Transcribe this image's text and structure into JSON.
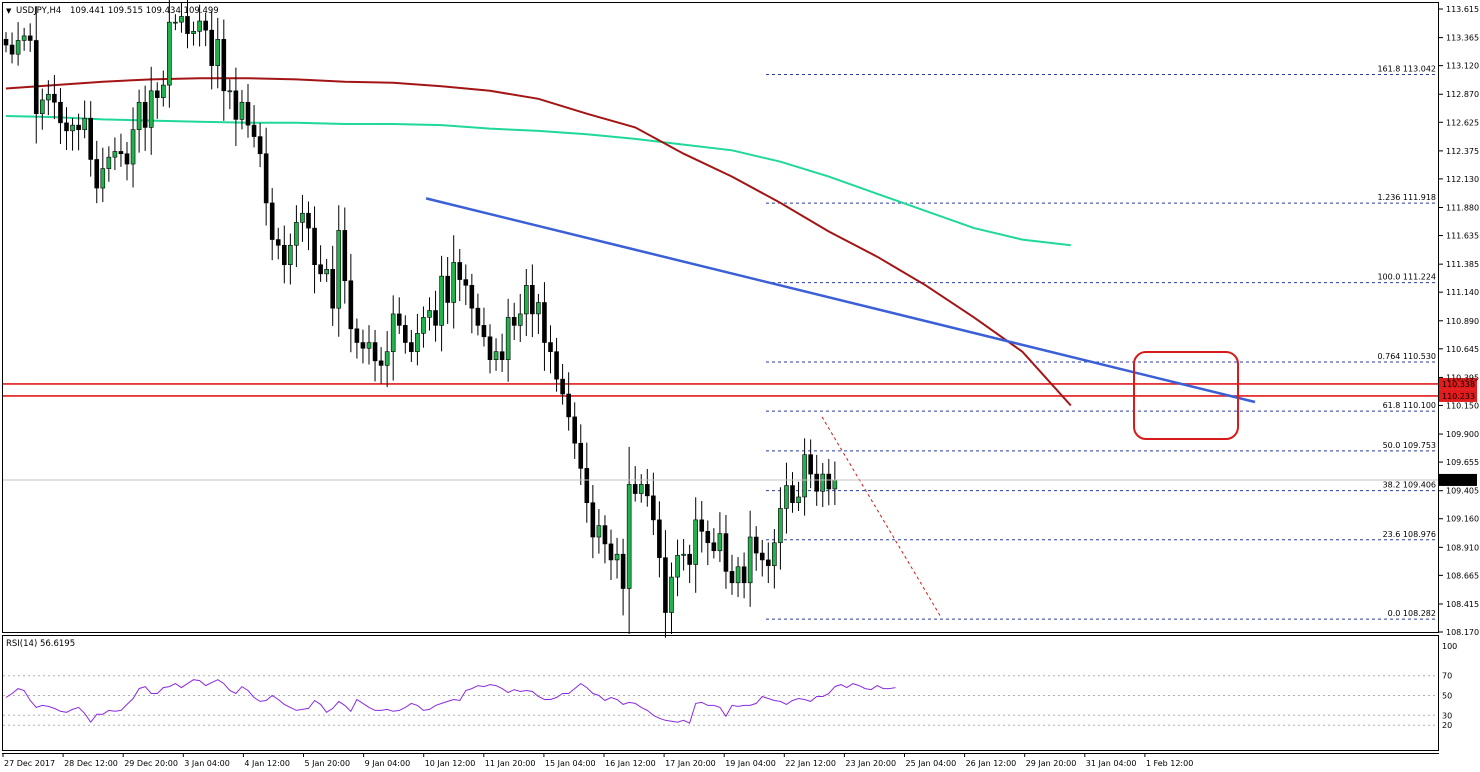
{
  "header": {
    "symbol_label": "USDJPY,H4",
    "ohlc_label": "109.441 109.515 109.434 109.499"
  },
  "rsi_panel": {
    "label": "RSI(14) 56.6195",
    "levels": [
      100,
      70,
      50,
      30,
      20
    ],
    "level_labels": [
      "100",
      "70",
      "50",
      "30",
      "20"
    ],
    "values": [
      48,
      52,
      57,
      55,
      45,
      38,
      40,
      39,
      37,
      34,
      33,
      36,
      38,
      32,
      23,
      31,
      31,
      35,
      34,
      35,
      41,
      47,
      57,
      59,
      52,
      52,
      58,
      59,
      62,
      58,
      62,
      66,
      65,
      60,
      63,
      66,
      62,
      55,
      52,
      59,
      55,
      48,
      44,
      45,
      50,
      46,
      41,
      38,
      35,
      36,
      37,
      45,
      41,
      33,
      37,
      44,
      40,
      34,
      46,
      42,
      38,
      35,
      35,
      36,
      34,
      35,
      38,
      42,
      40,
      35,
      36,
      40,
      42,
      44,
      46,
      45,
      55,
      57,
      60,
      59,
      61,
      60,
      57,
      53,
      56,
      54,
      55,
      54,
      49,
      46,
      46,
      48,
      52,
      52,
      57,
      62,
      58,
      52,
      50,
      45,
      48,
      46,
      41,
      43,
      42,
      38,
      35,
      30,
      27,
      25,
      24,
      23,
      25,
      22,
      42,
      43,
      40,
      40,
      38,
      29,
      40,
      39,
      40,
      40,
      42,
      49,
      47,
      45,
      44,
      41,
      45,
      47,
      46,
      44,
      49,
      49,
      52,
      59,
      61,
      58,
      62,
      60,
      57,
      56,
      60,
      57,
      57,
      58
    ]
  },
  "price_axis": {
    "ticks": [
      "113.615",
      "113.365",
      "113.120",
      "112.870",
      "112.625",
      "112.375",
      "112.130",
      "111.880",
      "111.635",
      "111.385",
      "111.140",
      "110.890",
      "110.645",
      "110.395",
      "110.150",
      "109.900",
      "109.655",
      "109.405",
      "109.160",
      "108.910",
      "108.665",
      "108.415",
      "108.170"
    ],
    "current_price_label": "109.499",
    "resistance_labels": [
      "110.338",
      "110.233"
    ]
  },
  "time_axis": {
    "labels": [
      "27 Dec 2017",
      "28 Dec 12:00",
      "29 Dec 20:00",
      "3 Jan 04:00",
      "4 Jan 12:00",
      "5 Jan 20:00",
      "9 Jan 04:00",
      "10 Jan 12:00",
      "11 Jan 20:00",
      "15 Jan 04:00",
      "16 Jan 12:00",
      "17 Jan 20:00",
      "19 Jan 04:00",
      "22 Jan 12:00",
      "23 Jan 20:00",
      "25 Jan 04:00",
      "26 Jan 12:00",
      "29 Jan 20:00",
      "31 Jan 04:00",
      "1 Feb 12:00"
    ]
  },
  "fibonacci": {
    "levels": [
      {
        "ratio": "161.8",
        "price": "113.042"
      },
      {
        "ratio": "1.236",
        "price": "111.918"
      },
      {
        "ratio": "100.0",
        "price": "111.224"
      },
      {
        "ratio": "0.764",
        "price": "110.530"
      },
      {
        "ratio": "61.8",
        "price": "110.100"
      },
      {
        "ratio": "50.0",
        "price": "109.753"
      },
      {
        "ratio": "38.2",
        "price": "109.406"
      },
      {
        "ratio": "23.6",
        "price": "108.976"
      },
      {
        "ratio": "0.0",
        "price": "108.282"
      }
    ]
  },
  "colors": {
    "bull_candle": "#22b14c",
    "bear_candle": "#000000",
    "sma_fast": "#a31515",
    "sma_slow": "#1fd89a",
    "trendline": "#3a5fd6",
    "resistance": "#e21c1c",
    "fib_line": "#2a3aa8",
    "rsi_line": "#8a2be2",
    "highlight_box": "#d71a1a"
  },
  "chart_data": {
    "type": "candlestick",
    "symbol": "USDJPY",
    "timeframe": "H4",
    "ylim": [
      108.17,
      113.615
    ],
    "close": [
      113.3,
      113.22,
      113.34,
      113.38,
      113.34,
      112.7,
      112.82,
      112.87,
      112.8,
      112.62,
      112.55,
      112.6,
      112.56,
      112.66,
      112.3,
      112.05,
      112.22,
      112.32,
      112.37,
      112.35,
      112.26,
      112.56,
      112.8,
      112.58,
      112.9,
      112.84,
      112.95,
      113.5,
      113.5,
      113.55,
      113.4,
      113.42,
      113.51,
      113.43,
      113.12,
      113.35,
      112.9,
      112.9,
      112.65,
      112.8,
      112.6,
      112.5,
      112.35,
      111.92,
      111.6,
      111.55,
      111.38,
      111.55,
      111.75,
      111.83,
      111.7,
      111.38,
      111.3,
      111.34,
      111.0,
      111.68,
      111.24,
      110.82,
      110.7,
      110.65,
      110.7,
      110.54,
      110.5,
      110.62,
      110.95,
      110.85,
      110.7,
      110.62,
      110.78,
      110.92,
      110.98,
      110.85,
      111.28,
      111.05,
      111.4,
      111.25,
      111.2,
      111.0,
      110.85,
      110.75,
      110.55,
      110.62,
      110.55,
      110.92,
      110.85,
      110.95,
      111.2,
      110.95,
      111.05,
      110.7,
      110.62,
      110.38,
      110.25,
      110.05,
      109.82,
      109.6,
      109.3,
      109.0,
      109.1,
      108.94,
      108.8,
      108.85,
      108.55,
      109.46,
      109.38,
      109.46,
      109.36,
      109.15,
      108.82,
      108.34,
      108.65,
      108.84,
      108.85,
      108.76,
      109.15,
      109.05,
      108.95,
      108.88,
      109.03,
      108.7,
      108.6,
      108.74,
      108.6,
      109.0,
      108.86,
      108.8,
      108.75,
      108.95,
      109.25,
      109.45,
      109.3,
      109.35,
      109.72,
      109.55,
      109.4,
      109.55,
      109.42,
      109.5
    ],
    "sma_fast": [
      112.92,
      112.95,
      112.98,
      113.0,
      113.01,
      113.01,
      113.0,
      112.98,
      112.97,
      112.94,
      112.9,
      112.83,
      112.7,
      112.58,
      112.35,
      112.15,
      111.92,
      111.67,
      111.45,
      111.2,
      110.92,
      110.62,
      110.15
    ],
    "sma_slow": [
      112.68,
      112.67,
      112.65,
      112.64,
      112.63,
      112.62,
      112.62,
      112.61,
      112.61,
      112.6,
      112.57,
      112.55,
      112.52,
      112.48,
      112.43,
      112.38,
      112.28,
      112.15,
      112.0,
      111.85,
      111.7,
      111.6,
      111.55
    ],
    "trendline": {
      "start_bar": 62,
      "start_price": 111.96,
      "end_bar": 191,
      "end_price": 110.18
    },
    "resistance_levels": [
      110.338,
      110.233
    ]
  }
}
